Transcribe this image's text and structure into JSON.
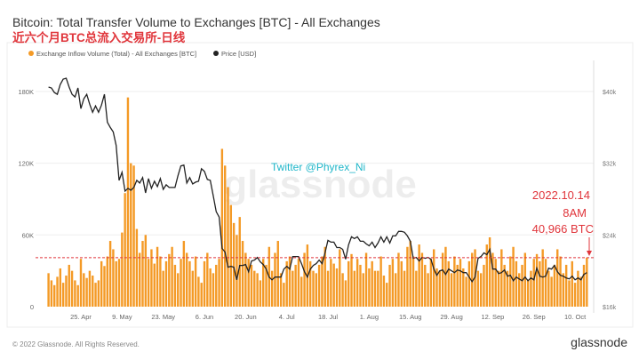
{
  "header": {
    "title": "Bitcoin: Total Transfer Volume to Exchanges [BTC] - All Exchanges",
    "subtitle_cn": "近六个月BTC总流入交易所-日线"
  },
  "footer": {
    "copyright": "© 2022 Glassnode. All Rights Reserved.",
    "logo": "glassnode"
  },
  "watermark": "glassnode",
  "overlay_text": "Twitter @Phyrex_Ni",
  "annotation": {
    "line1": "2022.10.14",
    "line2": "8AM",
    "line3": "40,966 BTC",
    "value": 40.966
  },
  "colors": {
    "bars": "#f49a26",
    "price": "#222222",
    "annotation": "#e0353b",
    "overlay": "#1fb6c9"
  },
  "chart_data": {
    "type": "bar",
    "title": "Bitcoin: Total Transfer Volume to Exchanges [BTC] - All Exchanges",
    "start_date": "2022-04-14",
    "legend": [
      "Exchange Inflow Volume (Total) - All Exchanges [BTC]",
      "Price [USD]"
    ],
    "legend_placement": "top-left",
    "x_ticks": [
      "25. Apr",
      "9. May",
      "23. May",
      "6. Jun",
      "20. Jun",
      "4. Jul",
      "18. Jul",
      "1. Aug",
      "15. Aug",
      "29. Aug",
      "12. Sep",
      "26. Sep",
      "10. Oct"
    ],
    "x_tick_day_index": [
      11,
      25,
      39,
      53,
      67,
      81,
      95,
      109,
      123,
      137,
      151,
      165,
      179
    ],
    "y_left": {
      "ticks": [
        "0",
        "60K",
        "120K",
        "180K"
      ],
      "tick_values": [
        0,
        60,
        120,
        180
      ],
      "unit": "thousand BTC"
    },
    "y_right": {
      "ticks": [
        "$16k",
        "$24k",
        "$32k",
        "$40k"
      ],
      "tick_values": [
        16,
        24,
        32,
        40
      ],
      "unit": "thousand USD",
      "scale": "log"
    },
    "series": [
      {
        "name": "Exchange Inflow Volume (Total) - All Exchanges [BTC]",
        "type": "bar",
        "unit": "thousand BTC",
        "values": [
          28,
          22,
          18,
          25,
          32,
          20,
          26,
          35,
          30,
          22,
          18,
          40,
          28,
          24,
          30,
          26,
          20,
          22,
          38,
          34,
          42,
          55,
          48,
          38,
          40,
          62,
          95,
          175,
          120,
          118,
          65,
          45,
          55,
          60,
          40,
          48,
          36,
          50,
          42,
          30,
          38,
          44,
          50,
          35,
          28,
          40,
          55,
          45,
          38,
          30,
          42,
          25,
          20,
          38,
          45,
          32,
          28,
          35,
          40,
          132,
          118,
          100,
          85,
          70,
          60,
          75,
          55,
          45,
          40,
          35,
          30,
          28,
          22,
          40,
          35,
          50,
          30,
          45,
          55,
          28,
          20,
          38,
          42,
          30,
          35,
          40,
          25,
          45,
          52,
          38,
          30,
          28,
          35,
          42,
          50,
          30,
          40,
          36,
          32,
          48,
          28,
          22,
          38,
          44,
          30,
          40,
          35,
          28,
          45,
          32,
          38,
          30,
          30,
          42,
          26,
          20,
          35,
          40,
          28,
          45,
          38,
          30,
          50,
          55,
          42,
          30,
          52,
          45,
          35,
          28,
          40,
          48,
          32,
          30,
          45,
          50,
          38,
          28,
          42,
          35,
          40,
          32,
          25,
          38,
          45,
          48,
          30,
          28,
          35,
          52,
          58,
          45,
          40,
          30,
          48,
          35,
          30,
          42,
          50,
          38,
          28,
          35,
          45,
          22,
          30,
          40,
          44,
          38,
          48,
          40,
          30,
          25,
          35,
          48,
          42,
          28,
          35,
          22,
          38,
          20,
          30,
          25,
          35,
          40.966
        ]
      },
      {
        "name": "Price [USD]",
        "type": "line",
        "unit": "thousand USD",
        "values": [
          40.5,
          40.4,
          39.9,
          39.7,
          40.8,
          41.4,
          41.5,
          40.5,
          39.7,
          39.4,
          40.4,
          38.1,
          39.2,
          39.7,
          38.6,
          37.7,
          38.4,
          37.7,
          38.5,
          39.7,
          36.6,
          36.0,
          35.5,
          34.0,
          30.1,
          31.0,
          28.9,
          29.2,
          29.0,
          29.3,
          30.1,
          29.8,
          30.4,
          28.7,
          30.3,
          29.2,
          30.0,
          29.4,
          30.3,
          29.1,
          29.6,
          29.3,
          29.3,
          29.3,
          30.6,
          31.7,
          31.8,
          29.8,
          30.4,
          29.7,
          29.9,
          30.0,
          31.4,
          31.1,
          30.2,
          30.1,
          28.4,
          26.6,
          26.0,
          22.5,
          22.1,
          20.4,
          20.5,
          20.4,
          19.0,
          20.6,
          20.6,
          20.7,
          19.9,
          21.1,
          21.2,
          21.5,
          21.0,
          20.7,
          20.2,
          19.3,
          19.0,
          19.3,
          19.3,
          19.3,
          20.2,
          20.5,
          20.2,
          21.6,
          21.6,
          21.6,
          20.8,
          19.9,
          19.3,
          20.2,
          20.6,
          20.8,
          21.2,
          20.8,
          22.0,
          23.4,
          23.2,
          23.2,
          22.6,
          22.6,
          22.4,
          21.3,
          22.9,
          23.8,
          23.6,
          23.8,
          23.3,
          23.3,
          23.0,
          22.8,
          23.2,
          22.6,
          23.1,
          23.8,
          23.2,
          23.8,
          23.1,
          23.9,
          23.9,
          24.4,
          24.4,
          24.3,
          23.9,
          23.3,
          21.4,
          21.5,
          21.1,
          21.5,
          21.4,
          21.5,
          21.3,
          20.2,
          19.5,
          20.0,
          20.1,
          19.6,
          20.2,
          20.0,
          19.8,
          20.1,
          20.0,
          19.8,
          19.8,
          19.3,
          18.8,
          19.3,
          21.4,
          21.6,
          22.0,
          21.8,
          22.4,
          20.2,
          20.2,
          19.7,
          19.8,
          20.1,
          19.4,
          19.5,
          18.9,
          19.3,
          19.1,
          18.9,
          19.3,
          18.9,
          19.2,
          19.0,
          20.3,
          19.4,
          19.3,
          19.4,
          20.3,
          20.2,
          20.6,
          19.9,
          19.5,
          19.4,
          19.2,
          19.1,
          19.4,
          19.0,
          19.2,
          19.0,
          19.6,
          19.8
        ]
      }
    ]
  }
}
